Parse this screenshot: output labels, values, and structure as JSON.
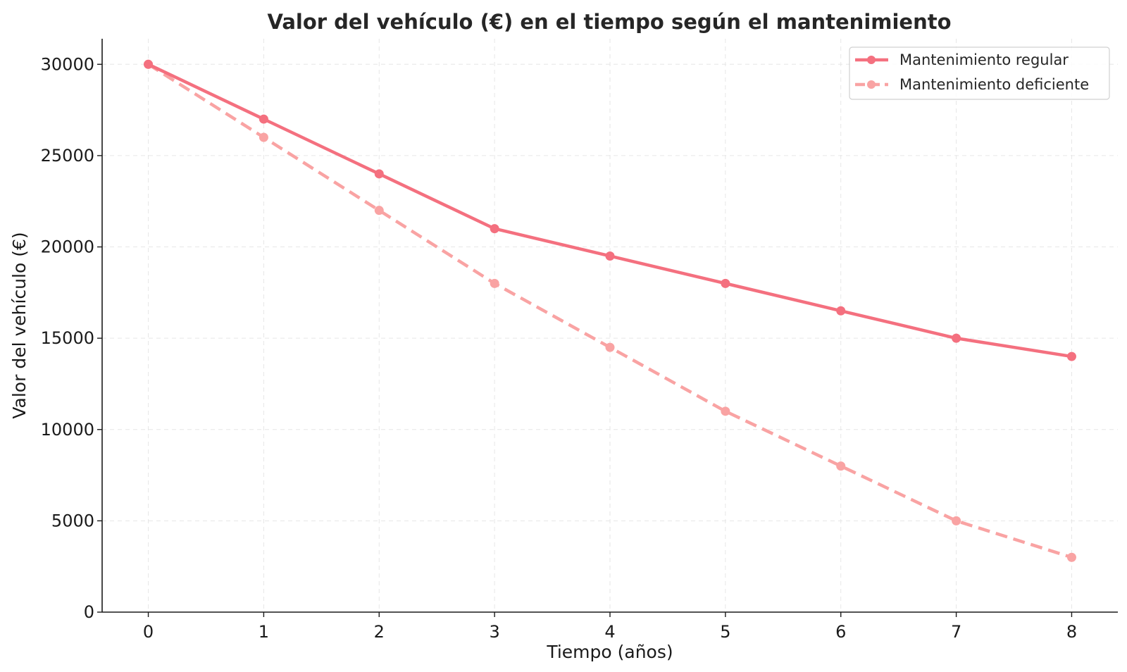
{
  "chart_data": {
    "type": "line",
    "title": "Valor del vehículo (€) en el tiempo según el mantenimiento",
    "xlabel": "Tiempo (años)",
    "ylabel": "Valor del vehículo (€)",
    "x": [
      0,
      1,
      2,
      3,
      4,
      5,
      6,
      7,
      8
    ],
    "xticks": [
      "0",
      "1",
      "2",
      "3",
      "4",
      "5",
      "6",
      "7",
      "8"
    ],
    "yticks": [
      "0",
      "5000",
      "10000",
      "15000",
      "20000",
      "25000",
      "30000"
    ],
    "xlim": [
      -0.4,
      8.4
    ],
    "ylim": [
      0,
      31400
    ],
    "grid": true,
    "legend_position": "top-right",
    "series": [
      {
        "name": "Mantenimiento regular",
        "values": [
          30000,
          27000,
          24000,
          21000,
          19500,
          18000,
          16500,
          15000,
          14000
        ],
        "color": "#f4707f",
        "style": "solid",
        "marker": "circle"
      },
      {
        "name": "Mantenimiento deficiente",
        "values": [
          30000,
          26000,
          22000,
          18000,
          14500,
          11000,
          8000,
          5000,
          3000
        ],
        "color": "#f9a3a3",
        "style": "dashed",
        "marker": "circle"
      }
    ]
  }
}
